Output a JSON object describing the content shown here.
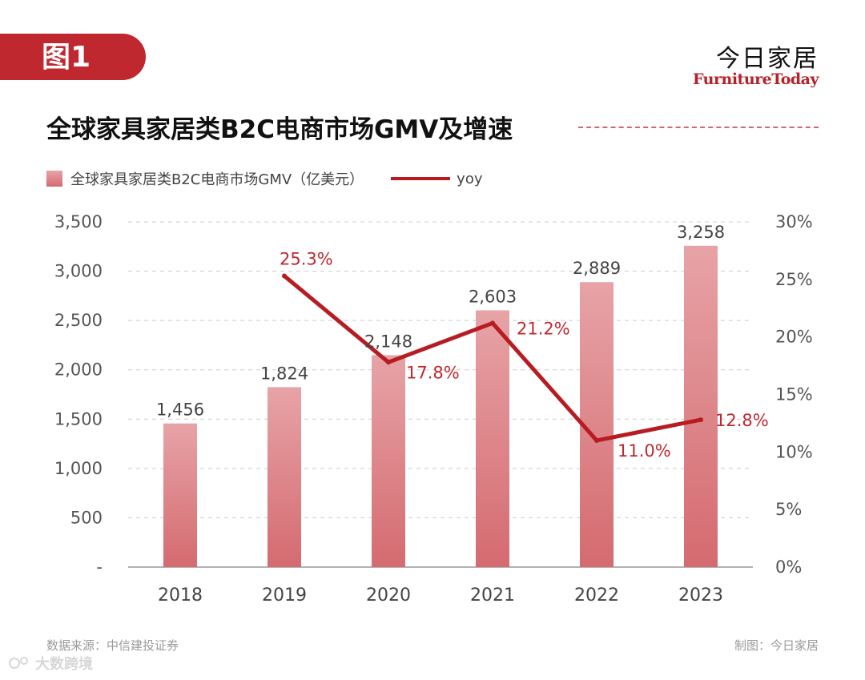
{
  "header": {
    "figure_label": "图1",
    "brand_cn": "今日家居",
    "brand_en": "FurnitureToday"
  },
  "chart_data": {
    "type": "bar",
    "title": "全球家具家居类B2C电商市场GMV及增速",
    "categories": [
      "2018",
      "2019",
      "2020",
      "2021",
      "2022",
      "2023"
    ],
    "series": [
      {
        "name": "全球家具家居类B2C电商市场GMV（亿美元）",
        "type": "bar",
        "axis": "left",
        "values": [
          1456,
          1824,
          2148,
          2603,
          2889,
          3258
        ],
        "labels": [
          "1,456",
          "1,824",
          "2,148",
          "2,603",
          "2,889",
          "3,258"
        ]
      },
      {
        "name": "yoy",
        "type": "line",
        "axis": "right",
        "values": [
          null,
          25.3,
          17.8,
          21.2,
          11.0,
          12.8
        ],
        "labels": [
          "",
          "25.3%",
          "17.8%",
          "21.2%",
          "11.0%",
          "12.8%"
        ]
      }
    ],
    "y_left": {
      "ylim": [
        0,
        3500
      ],
      "ticks": [
        0,
        500,
        1000,
        1500,
        2000,
        2500,
        3000,
        3500
      ],
      "tick_labels": [
        "-",
        "500",
        "1,000",
        "1,500",
        "2,000",
        "2,500",
        "3,000",
        "3,500"
      ]
    },
    "y_right": {
      "ylim": [
        0,
        30
      ],
      "ticks": [
        0,
        5,
        10,
        15,
        20,
        25,
        30
      ],
      "tick_labels": [
        "0%",
        "5%",
        "10%",
        "15%",
        "20%",
        "25%",
        "30%"
      ]
    },
    "grid": true,
    "legend": "top-left",
    "colors": {
      "bar_top": "#e7a3a6",
      "bar_bottom": "#d46b70",
      "line": "#b71c22",
      "line_label": "#c0282f",
      "grid": "#cccccc"
    }
  },
  "footer": {
    "source": "数据来源：中信建投证券",
    "credit": "制图：今日家居",
    "corner_mark": "大数跨境"
  }
}
